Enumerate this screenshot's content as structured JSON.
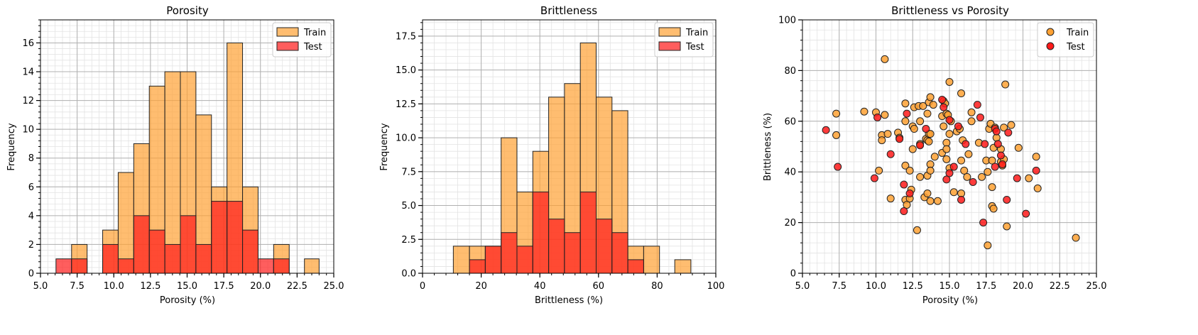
{
  "colors": {
    "train": "#ffa133",
    "test": "#ff1a1a",
    "edge": "#222222",
    "grid": "#b0b0b0"
  },
  "chart_data": [
    {
      "type": "bar",
      "subtype": "histogram",
      "title": "Porosity",
      "xlabel": "Porosity (%)",
      "ylabel": "Frequency",
      "xlim": [
        5.0,
        25.0
      ],
      "ylim": [
        0,
        17.6
      ],
      "xticks": [
        "5.0",
        "7.5",
        "10.0",
        "12.5",
        "15.0",
        "17.5",
        "20.0",
        "22.5",
        "25.0"
      ],
      "yticks": [
        "0",
        "2",
        "4",
        "6",
        "8",
        "10",
        "12",
        "14",
        "16"
      ],
      "grid": true,
      "legend": {
        "placement": "top-right",
        "entries": [
          "Train",
          "Test"
        ]
      },
      "series": [
        {
          "name": "Train",
          "bins": [
            [
              7.12,
              8.18,
              2
            ],
            [
              9.24,
              10.3,
              3
            ],
            [
              10.3,
              11.36,
              7
            ],
            [
              11.36,
              12.42,
              9
            ],
            [
              12.42,
              13.48,
              13
            ],
            [
              13.48,
              14.54,
              14
            ],
            [
              14.54,
              15.6,
              14
            ],
            [
              15.6,
              16.66,
              11
            ],
            [
              16.66,
              17.72,
              6
            ],
            [
              17.72,
              18.78,
              16
            ],
            [
              18.78,
              19.84,
              6
            ],
            [
              20.9,
              21.96,
              2
            ],
            [
              23.0,
              24.0,
              1
            ]
          ]
        },
        {
          "name": "Test",
          "bins": [
            [
              6.06,
              7.12,
              1
            ],
            [
              7.12,
              8.18,
              1
            ],
            [
              9.24,
              10.3,
              2
            ],
            [
              10.3,
              11.36,
              1
            ],
            [
              11.36,
              12.42,
              4
            ],
            [
              12.42,
              13.48,
              3
            ],
            [
              13.48,
              14.54,
              2
            ],
            [
              14.54,
              15.6,
              4
            ],
            [
              15.6,
              16.66,
              2
            ],
            [
              16.66,
              17.72,
              5
            ],
            [
              17.72,
              18.78,
              5
            ],
            [
              18.78,
              19.84,
              3
            ],
            [
              19.84,
              20.9,
              1
            ],
            [
              20.9,
              21.96,
              1
            ]
          ]
        }
      ]
    },
    {
      "type": "bar",
      "subtype": "histogram",
      "title": "Brittleness",
      "xlabel": "Brittleness (%)",
      "ylabel": "Frequency",
      "xlim": [
        0,
        100
      ],
      "ylim": [
        0,
        18.7
      ],
      "xticks": [
        "0",
        "20",
        "40",
        "60",
        "80",
        "100"
      ],
      "yticks": [
        "0.0",
        "2.5",
        "5.0",
        "7.5",
        "10.0",
        "12.5",
        "15.0",
        "17.5"
      ],
      "grid": true,
      "legend": {
        "placement": "top-right",
        "entries": [
          "Train",
          "Test"
        ]
      },
      "series": [
        {
          "name": "Train",
          "bins": [
            [
              10.5,
              16.0,
              2
            ],
            [
              16.0,
              21.4,
              2
            ],
            [
              21.4,
              26.8,
              2
            ],
            [
              26.8,
              32.2,
              10
            ],
            [
              32.2,
              37.6,
              6
            ],
            [
              37.6,
              43.0,
              9
            ],
            [
              43.0,
              48.4,
              13
            ],
            [
              48.4,
              53.8,
              14
            ],
            [
              53.8,
              59.2,
              17
            ],
            [
              59.2,
              64.6,
              13
            ],
            [
              64.6,
              70.0,
              12
            ],
            [
              70.0,
              75.4,
              2
            ],
            [
              75.4,
              80.8,
              2
            ],
            [
              86.0,
              91.5,
              1
            ]
          ]
        },
        {
          "name": "Test",
          "bins": [
            [
              16.0,
              21.4,
              1
            ],
            [
              21.4,
              26.8,
              2
            ],
            [
              26.8,
              32.2,
              3
            ],
            [
              32.2,
              37.6,
              2
            ],
            [
              37.6,
              43.0,
              6
            ],
            [
              43.0,
              48.4,
              4
            ],
            [
              48.4,
              53.8,
              3
            ],
            [
              53.8,
              59.2,
              6
            ],
            [
              59.2,
              64.6,
              4
            ],
            [
              64.6,
              70.0,
              3
            ],
            [
              70.0,
              75.4,
              1
            ]
          ]
        }
      ]
    },
    {
      "type": "scatter",
      "title": "Brittleness vs Porosity",
      "xlabel": "Porosity (%)",
      "ylabel": "Brittleness (%)",
      "xlim": [
        5.0,
        25.0
      ],
      "ylim": [
        0,
        100
      ],
      "xticks": [
        "5.0",
        "7.5",
        "10.0",
        "12.5",
        "15.0",
        "17.5",
        "20.0",
        "22.5",
        "25.0"
      ],
      "yticks": [
        "0",
        "20",
        "40",
        "60",
        "80",
        "100"
      ],
      "grid": true,
      "legend": {
        "placement": "top-right",
        "entries": [
          "Train",
          "Test"
        ]
      },
      "series": [
        {
          "name": "Train",
          "points": [
            [
              7.3,
              63
            ],
            [
              7.3,
              54.5
            ],
            [
              9.2,
              63.8
            ],
            [
              10.0,
              63.5
            ],
            [
              10.2,
              40.5
            ],
            [
              10.4,
              54.5
            ],
            [
              10.4,
              52.5
            ],
            [
              10.6,
              62.5
            ],
            [
              10.6,
              84.5
            ],
            [
              10.8,
              55
            ],
            [
              11.0,
              29.5
            ],
            [
              11.5,
              55.5
            ],
            [
              11.6,
              53.5
            ],
            [
              12.0,
              67
            ],
            [
              12.0,
              60
            ],
            [
              12.0,
              42.5
            ],
            [
              12.0,
              29
            ],
            [
              12.1,
              27
            ],
            [
              12.3,
              29.5
            ],
            [
              12.3,
              40.5
            ],
            [
              12.4,
              33
            ],
            [
              12.5,
              49
            ],
            [
              12.5,
              58
            ],
            [
              12.6,
              57
            ],
            [
              12.6,
              65.5
            ],
            [
              12.8,
              17
            ],
            [
              12.9,
              66
            ],
            [
              13.0,
              60
            ],
            [
              13.0,
              51
            ],
            [
              13.0,
              38
            ],
            [
              13.2,
              66
            ],
            [
              13.3,
              30
            ],
            [
              13.4,
              53
            ],
            [
              13.5,
              52.5
            ],
            [
              13.5,
              63
            ],
            [
              13.5,
              38.5
            ],
            [
              13.5,
              31.5
            ],
            [
              13.6,
              52
            ],
            [
              13.6,
              55
            ],
            [
              13.6,
              67.5
            ],
            [
              13.7,
              69.5
            ],
            [
              13.7,
              55
            ],
            [
              13.7,
              43
            ],
            [
              13.7,
              40.5
            ],
            [
              13.7,
              28.5
            ],
            [
              13.9,
              66.5
            ],
            [
              14.0,
              46
            ],
            [
              14.2,
              28.5
            ],
            [
              14.5,
              62
            ],
            [
              14.5,
              47.5
            ],
            [
              14.6,
              58
            ],
            [
              14.6,
              68
            ],
            [
              14.7,
              67
            ],
            [
              14.8,
              63
            ],
            [
              14.8,
              51.5
            ],
            [
              14.8,
              49
            ],
            [
              14.8,
              45
            ],
            [
              14.9,
              62.5
            ],
            [
              15.0,
              75.5
            ],
            [
              15.0,
              55
            ],
            [
              15.0,
              41.5
            ],
            [
              15.1,
              60
            ],
            [
              15.3,
              32
            ],
            [
              15.5,
              56
            ],
            [
              15.7,
              57
            ],
            [
              15.8,
              71
            ],
            [
              15.8,
              44.5
            ],
            [
              15.8,
              31.5
            ],
            [
              15.9,
              52.5
            ],
            [
              16.0,
              40.5
            ],
            [
              16.2,
              38
            ],
            [
              16.3,
              47
            ],
            [
              16.5,
              63.5
            ],
            [
              16.5,
              60
            ],
            [
              17.0,
              51.5
            ],
            [
              17.2,
              38
            ],
            [
              17.5,
              44.5
            ],
            [
              17.6,
              11
            ],
            [
              17.6,
              40
            ],
            [
              17.7,
              57
            ],
            [
              17.8,
              59
            ],
            [
              17.9,
              26.5
            ],
            [
              17.9,
              34
            ],
            [
              17.9,
              44.5
            ],
            [
              18.0,
              49.5
            ],
            [
              18.0,
              25.5
            ],
            [
              18.1,
              57.5
            ],
            [
              18.2,
              53.5
            ],
            [
              18.5,
              44
            ],
            [
              18.5,
              49
            ],
            [
              18.6,
              42.5
            ],
            [
              18.7,
              57.5
            ],
            [
              18.7,
              45
            ],
            [
              18.8,
              74.5
            ],
            [
              18.9,
              18.5
            ],
            [
              19.2,
              58.5
            ],
            [
              19.7,
              49.5
            ],
            [
              20.4,
              37.5
            ],
            [
              20.9,
              46
            ],
            [
              21.0,
              33.5
            ],
            [
              23.6,
              14
            ]
          ]
        },
        {
          "name": "Test",
          "points": [
            [
              6.6,
              56.5
            ],
            [
              7.4,
              42
            ],
            [
              9.9,
              37.5
            ],
            [
              10.1,
              61.5
            ],
            [
              11.0,
              47
            ],
            [
              11.6,
              53
            ],
            [
              11.9,
              35
            ],
            [
              11.9,
              24.5
            ],
            [
              12.1,
              63
            ],
            [
              12.3,
              31.5
            ],
            [
              13.0,
              50.5
            ],
            [
              13.4,
              57
            ],
            [
              14.5,
              68.5
            ],
            [
              14.6,
              65.5
            ],
            [
              14.8,
              37
            ],
            [
              15.0,
              39.5
            ],
            [
              15.0,
              60.5
            ],
            [
              15.3,
              42
            ],
            [
              15.6,
              58
            ],
            [
              15.8,
              29
            ],
            [
              16.1,
              51
            ],
            [
              16.6,
              36
            ],
            [
              16.9,
              66.5
            ],
            [
              17.1,
              61.5
            ],
            [
              17.3,
              20
            ],
            [
              17.4,
              51
            ],
            [
              18.1,
              57
            ],
            [
              18.1,
              42
            ],
            [
              18.2,
              56
            ],
            [
              18.3,
              51
            ],
            [
              18.5,
              46.5
            ],
            [
              18.6,
              43
            ],
            [
              18.9,
              29
            ],
            [
              19.0,
              55.5
            ],
            [
              19.6,
              37.5
            ],
            [
              20.2,
              23.5
            ],
            [
              20.9,
              40.5
            ]
          ]
        }
      ]
    }
  ]
}
